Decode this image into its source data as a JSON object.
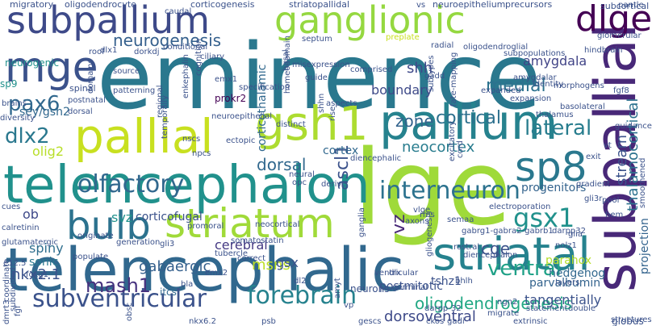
{
  "words": [
    {
      "text": "eminence",
      "color": "#2a788e"
    },
    {
      "text": "lge",
      "color": "#9fda3a"
    },
    {
      "text": "telencephalic",
      "color": "#31688e"
    },
    {
      "text": "telencephalon",
      "color": "#21918c"
    },
    {
      "text": "subpallial",
      "color": "#482878"
    },
    {
      "text": "pallium",
      "color": "#26828e"
    },
    {
      "text": "pallial",
      "color": "#c8e020"
    },
    {
      "text": "striatal",
      "color": "#26828e"
    },
    {
      "text": "ganglionic",
      "color": "#95d840"
    },
    {
      "text": "subpallium",
      "color": "#3e4a89"
    },
    {
      "text": "mge",
      "color": "#3b528b"
    },
    {
      "text": "dlge",
      "color": "#440154"
    },
    {
      "text": "gsh1",
      "color": "#addc30"
    },
    {
      "text": "bulb",
      "color": "#2c728e"
    },
    {
      "text": "striatum",
      "color": "#a0da39"
    },
    {
      "text": "sp8",
      "color": "#2a788e"
    },
    {
      "text": "olfactory",
      "color": "#31688e"
    },
    {
      "text": "interneuron",
      "color": "#2c728e"
    },
    {
      "text": "ventral",
      "color": "#1fa187"
    },
    {
      "text": "subventricular",
      "color": "#3b528b"
    },
    {
      "text": "forebrain",
      "color": "#26828e"
    },
    {
      "text": "gsx1",
      "color": "#21918c"
    },
    {
      "text": "lateral",
      "color": "#287d8e"
    },
    {
      "text": "dlx2",
      "color": "#2a788e"
    },
    {
      "text": "pax6",
      "color": "#31688e"
    },
    {
      "text": "mash1",
      "color": "#46327e"
    },
    {
      "text": "neurogenesis",
      "color": "#35608d"
    },
    {
      "text": "ascl1",
      "color": "#3b528b"
    },
    {
      "text": "zone",
      "color": "#33638d"
    },
    {
      "text": "cortical",
      "color": "#2d708e"
    },
    {
      "text": "medial",
      "color": "#2c728e"
    },
    {
      "text": "shh",
      "color": "#3e4989"
    },
    {
      "text": "dorsal",
      "color": "#31688e"
    },
    {
      "text": "amygdala",
      "color": "#414487"
    },
    {
      "text": "gabaergic",
      "color": "#35608d"
    },
    {
      "text": "corticofugal",
      "color": "#3b528b"
    },
    {
      "text": "spiny",
      "color": "#2e6e8e"
    },
    {
      "text": "nkx2.1",
      "color": "#3b528b"
    },
    {
      "text": "sonic",
      "color": "#2a788e"
    },
    {
      "text": "cge",
      "color": "#3b528b"
    },
    {
      "text": "neocortex",
      "color": "#287c8e"
    },
    {
      "text": "cortex",
      "color": "#31688e"
    },
    {
      "text": "boundary",
      "color": "#3e4a89"
    },
    {
      "text": "progenitors",
      "color": "#33638d"
    },
    {
      "text": "thalamocortical",
      "color": "#2c728e"
    },
    {
      "text": "stream",
      "color": "#3b528b"
    },
    {
      "text": "projection",
      "color": "#33638d"
    },
    {
      "text": "olig2",
      "color": "#b8de29"
    },
    {
      "text": "svz",
      "color": "#21918c"
    },
    {
      "text": "vz",
      "color": "#482878"
    },
    {
      "text": "ob",
      "color": "#3e4989"
    },
    {
      "text": "sey/gsh2",
      "color": "#31688e"
    },
    {
      "text": "cerebral",
      "color": "#443983"
    },
    {
      "text": "msns",
      "color": "#bddf26"
    },
    {
      "text": "gsx",
      "color": "#3b528b"
    },
    {
      "text": "itcs",
      "color": "#31688e"
    },
    {
      "text": "dorsoventral",
      "color": "#3e4a89"
    },
    {
      "text": "oligodendrogenesis",
      "color": "#22a884"
    },
    {
      "text": "tangentially",
      "color": "#3b528b"
    },
    {
      "text": "parvalbumin",
      "color": "#33638d"
    },
    {
      "text": "parahox",
      "color": "#b5de2b"
    },
    {
      "text": "hedgehog",
      "color": "#31688e"
    },
    {
      "text": "migratory",
      "color": "#3b528b"
    },
    {
      "text": "oligodendrocyte",
      "color": "#3b528b"
    },
    {
      "text": "corticogenesis",
      "color": "#3b528b"
    },
    {
      "text": "striatopallidal",
      "color": "#3b528b"
    },
    {
      "text": "neuroepithelium",
      "color": "#3b528b"
    },
    {
      "text": "precursors",
      "color": "#3b528b"
    },
    {
      "text": "subcortical",
      "color": "#3b528b"
    },
    {
      "text": "corticothalamic",
      "color": "#31688e"
    },
    {
      "text": "neurogenic",
      "color": "#21918c"
    },
    {
      "text": "sp9",
      "color": "#21918c"
    },
    {
      "text": "brains",
      "color": "#3b528b"
    },
    {
      "text": "diversity",
      "color": "#3b528b"
    },
    {
      "text": "cues",
      "color": "#3b528b"
    },
    {
      "text": "calretinin",
      "color": "#3b528b"
    },
    {
      "text": "glutamatergic",
      "color": "#3b528b"
    },
    {
      "text": "e12.5",
      "color": "#3b528b"
    },
    {
      "text": "spinal",
      "color": "#3b528b"
    },
    {
      "text": "postnatal",
      "color": "#3b528b"
    },
    {
      "text": "dorsal",
      "color": "#3b528b"
    },
    {
      "text": "patterning",
      "color": "#3b528b"
    },
    {
      "text": "enkephalin",
      "color": "#3b528b"
    },
    {
      "text": "prokr2",
      "color": "#440154"
    },
    {
      "text": "emx1",
      "color": "#3b528b"
    },
    {
      "text": "misexpression",
      "color": "#3b528b"
    },
    {
      "text": "comprised",
      "color": "#3b528b"
    },
    {
      "text": "septum",
      "color": "#3b528b"
    },
    {
      "text": "preplate",
      "color": "#c8e020"
    },
    {
      "text": "radial",
      "color": "#3b528b"
    },
    {
      "text": "oligodendroglial",
      "color": "#3b528b"
    },
    {
      "text": "expanded",
      "color": "#3b528b"
    },
    {
      "text": "expansion",
      "color": "#3b528b"
    },
    {
      "text": "amygdalar",
      "color": "#3b528b"
    },
    {
      "text": "identity",
      "color": "#3b528b"
    },
    {
      "text": "morphogens",
      "color": "#3b528b"
    },
    {
      "text": "basolateral",
      "color": "#3b528b"
    },
    {
      "text": "thalamus",
      "color": "#3b528b"
    },
    {
      "text": "fgf8",
      "color": "#3b528b"
    },
    {
      "text": "source",
      "color": "#3b528b"
    },
    {
      "text": "conditional",
      "color": "#3b528b"
    },
    {
      "text": "guide",
      "color": "#3b528b"
    },
    {
      "text": "subtypes",
      "color": "#3b528b"
    },
    {
      "text": "fate-mapping",
      "color": "#3b528b"
    },
    {
      "text": "homeodomain",
      "color": "#3b528b"
    },
    {
      "text": "neuroepithelial",
      "color": "#3b528b"
    },
    {
      "text": "distinct",
      "color": "#3b528b"
    },
    {
      "text": "aspects",
      "color": "#3b528b"
    },
    {
      "text": "nscs",
      "color": "#3b528b"
    },
    {
      "text": "npcs",
      "color": "#3b528b"
    },
    {
      "text": "ectopic",
      "color": "#3b528b"
    },
    {
      "text": "neural",
      "color": "#3b528b"
    },
    {
      "text": "rise",
      "color": "#3b528b"
    },
    {
      "text": "opc",
      "color": "#3b528b"
    },
    {
      "text": "derive",
      "color": "#3b528b"
    },
    {
      "text": "diencephalic",
      "color": "#3b528b"
    },
    {
      "text": "generation",
      "color": "#3b528b"
    },
    {
      "text": "populate",
      "color": "#3b528b"
    },
    {
      "text": "originate",
      "color": "#3b528b"
    },
    {
      "text": "somatostatin",
      "color": "#3b528b"
    },
    {
      "text": "tubercle",
      "color": "#3b528b"
    },
    {
      "text": "correct",
      "color": "#3b528b"
    },
    {
      "text": "neocortical",
      "color": "#3b528b"
    },
    {
      "text": "dlx",
      "color": "#3b528b"
    },
    {
      "text": "germinal",
      "color": "#3b528b"
    },
    {
      "text": "gliogenesis",
      "color": "#3b528b"
    },
    {
      "text": "ganglia",
      "color": "#3b528b"
    },
    {
      "text": "postmitotic",
      "color": "#3b528b"
    },
    {
      "text": "neurons",
      "color": "#3b528b"
    },
    {
      "text": "tshz1",
      "color": "#3b528b"
    },
    {
      "text": "bhlh",
      "color": "#3b528b"
    },
    {
      "text": "dlx1",
      "color": "#3b528b"
    },
    {
      "text": "glia",
      "color": "#3b528b"
    },
    {
      "text": "rostral",
      "color": "#3b528b"
    },
    {
      "text": "diencephalon",
      "color": "#3b528b"
    },
    {
      "text": "darpp32",
      "color": "#3b528b"
    },
    {
      "text": "nolz1",
      "color": "#3b528b"
    },
    {
      "text": "pool",
      "color": "#3b528b"
    },
    {
      "text": "hem",
      "color": "#3b528b"
    },
    {
      "text": "gradient",
      "color": "#3b528b"
    },
    {
      "text": "gli3r",
      "color": "#3b528b"
    },
    {
      "text": "vt",
      "color": "#3b528b"
    },
    {
      "text": "exit",
      "color": "#3b528b"
    },
    {
      "text": "axons",
      "color": "#3b528b"
    },
    {
      "text": "gabrg1-gabra2-gabrb1",
      "color": "#3b528b"
    },
    {
      "text": "ventricular",
      "color": "#3b528b"
    },
    {
      "text": "gli3",
      "color": "#3b528b"
    },
    {
      "text": "vp",
      "color": "#3b528b"
    },
    {
      "text": "emx2",
      "color": "#3b528b"
    },
    {
      "text": "bla",
      "color": "#3b528b"
    },
    {
      "text": "ngn2",
      "color": "#3b528b"
    },
    {
      "text": "darpp-32",
      "color": "#3b528b"
    },
    {
      "text": "migrate",
      "color": "#3b528b"
    },
    {
      "text": "statement",
      "color": "#3b528b"
    },
    {
      "text": "double",
      "color": "#3b528b"
    },
    {
      "text": "layers",
      "color": "#3b528b"
    },
    {
      "text": "extrinsic",
      "color": "#3b528b"
    },
    {
      "text": "nkx6.2",
      "color": "#3b528b"
    },
    {
      "text": "gescs",
      "color": "#3b528b"
    },
    {
      "text": "psb",
      "color": "#3b528b"
    },
    {
      "text": "globus",
      "color": "#3b528b"
    },
    {
      "text": "structures",
      "color": "#3b528b"
    },
    {
      "text": "obsc",
      "color": "#3b528b"
    },
    {
      "text": "foxg1",
      "color": "#3b528b"
    },
    {
      "text": "dmrt3",
      "color": "#3b528b"
    },
    {
      "text": "fgf",
      "color": "#3b528b"
    },
    {
      "text": "coordinate",
      "color": "#3b528b"
    },
    {
      "text": "subdivided",
      "color": "#3b528b"
    },
    {
      "text": "ckos",
      "color": "#3b528b"
    },
    {
      "text": "rms",
      "color": "#3b528b"
    },
    {
      "text": "caudal",
      "color": "#3b528b"
    },
    {
      "text": "vs",
      "color": "#3b528b"
    },
    {
      "text": "pantle",
      "color": "#3b528b"
    },
    {
      "text": "glomerular",
      "color": "#3b528b"
    },
    {
      "text": "hindbrain",
      "color": "#3b528b"
    },
    {
      "text": "subpopulations",
      "color": "#3b528b"
    },
    {
      "text": "shhn",
      "color": "#3b528b"
    },
    {
      "text": "cognition",
      "color": "#3b528b"
    },
    {
      "text": "specification",
      "color": "#3b528b"
    },
    {
      "text": "domains",
      "color": "#3b528b"
    },
    {
      "text": "temporally",
      "color": "#3b528b"
    },
    {
      "text": "regional",
      "color": "#3b528b"
    },
    {
      "text": "cord",
      "color": "#3b528b"
    },
    {
      "text": "electroporation",
      "color": "#3b528b"
    },
    {
      "text": "basal",
      "color": "#3b528b"
    },
    {
      "text": "guidance",
      "color": "#3b528b"
    },
    {
      "text": "smoothened",
      "color": "#3b528b"
    },
    {
      "text": "amyt",
      "color": "#3b528b"
    },
    {
      "text": "dl2",
      "color": "#3b528b"
    },
    {
      "text": "gadi",
      "color": "#3b528b"
    },
    {
      "text": "semaa",
      "color": "#3b528b"
    },
    {
      "text": "gadd",
      "color": "#3b528b"
    },
    {
      "text": "vlge",
      "color": "#3b528b"
    },
    {
      "text": "ciliary",
      "color": "#3b528b"
    },
    {
      "text": "dorkdj",
      "color": "#3b528b"
    },
    {
      "text": "roof",
      "color": "#3b528b"
    },
    {
      "text": "promoral",
      "color": "#3b528b"
    },
    {
      "text": "excitatory",
      "color": "#3b528b"
    }
  ]
}
